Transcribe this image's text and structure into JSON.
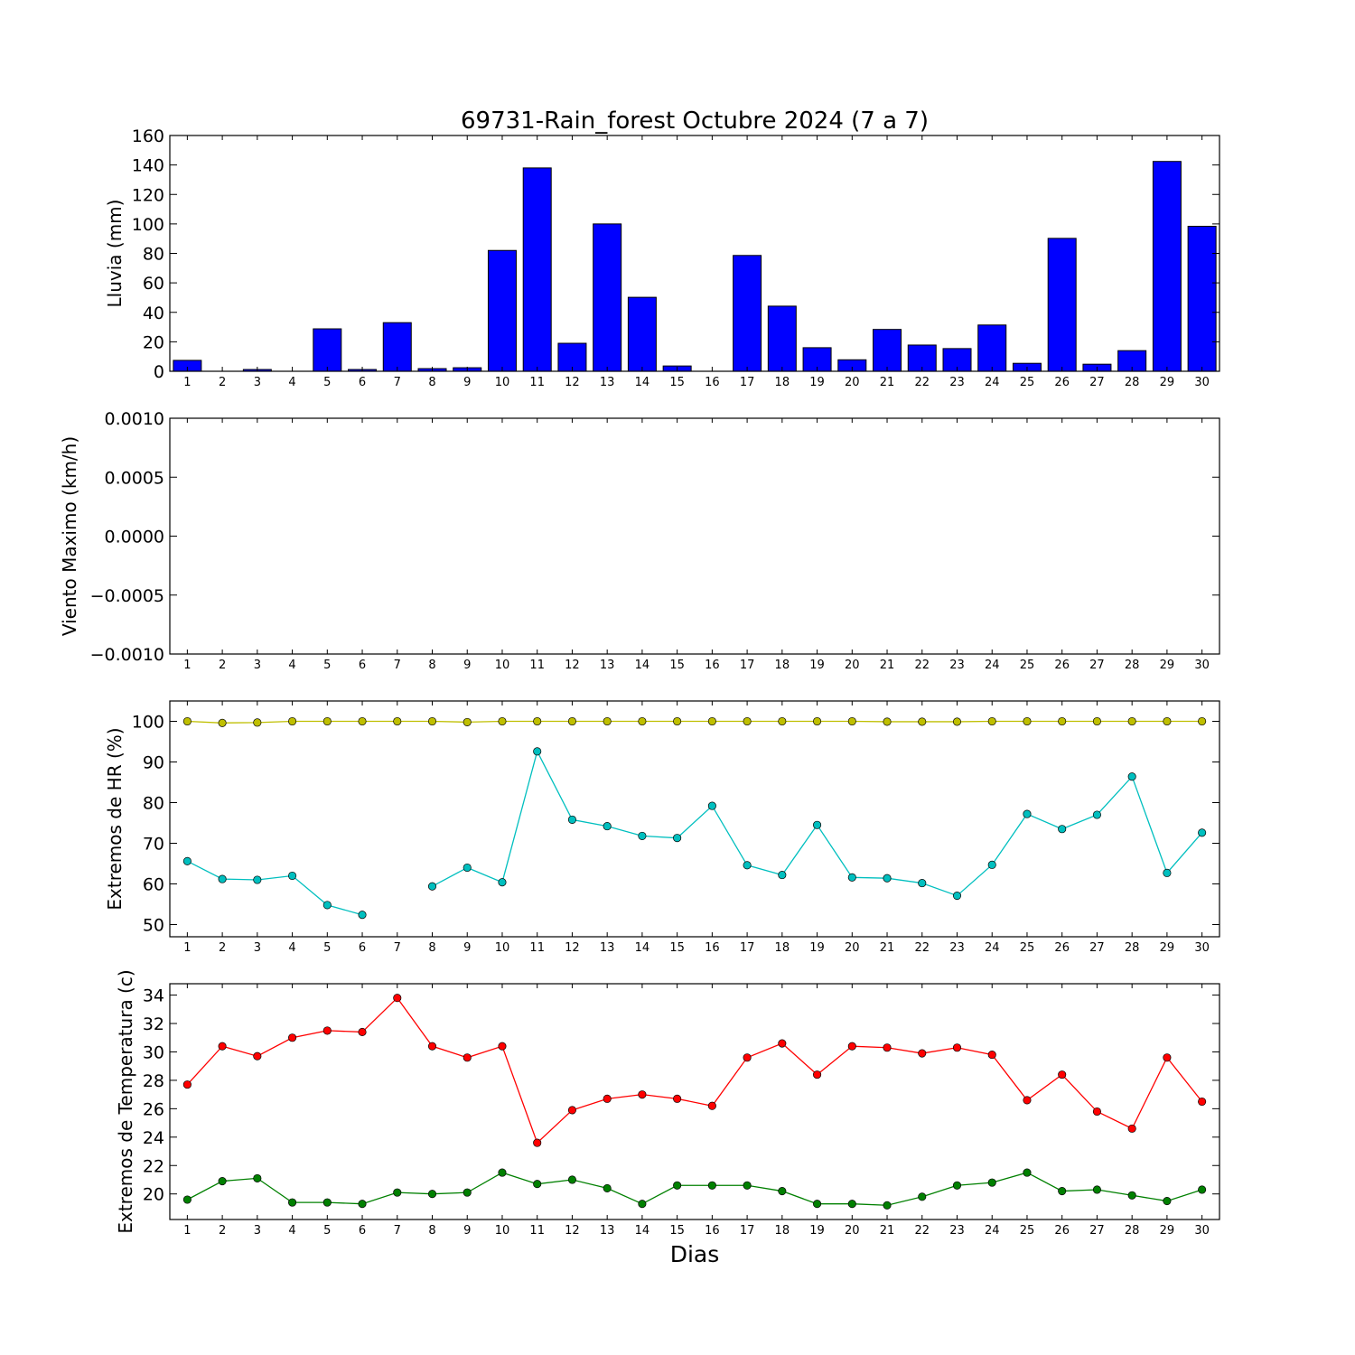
{
  "figure": {
    "title": "69731-Rain_forest Octubre 2024  (7 a 7)",
    "xlabel": "Dias"
  },
  "chart_data": [
    {
      "type": "bar",
      "id": "rain",
      "ylabel": "Lluvia (mm)",
      "ylim": [
        0,
        160
      ],
      "yticks": [
        0,
        20,
        40,
        60,
        80,
        100,
        120,
        140,
        160
      ],
      "ytick_labels": [
        "0",
        "20",
        "40",
        "60",
        "80",
        "100",
        "120",
        "140",
        "160"
      ],
      "categories": [
        "1",
        "2",
        "3",
        "4",
        "5",
        "6",
        "7",
        "8",
        "9",
        "10",
        "11",
        "12",
        "13",
        "14",
        "15",
        "16",
        "17",
        "18",
        "19",
        "20",
        "21",
        "22",
        "23",
        "24",
        "25",
        "26",
        "27",
        "28",
        "29",
        "30"
      ],
      "series": [
        {
          "color": "#0000ff",
          "values": [
            7.4,
            0,
            1.2,
            0,
            28.8,
            1.2,
            33,
            1.8,
            2.4,
            82,
            138,
            19,
            100,
            50.2,
            3.6,
            0,
            78.6,
            44.2,
            16,
            7.8,
            28.4,
            17.8,
            15.4,
            31.4,
            5.4,
            90.2,
            4.8,
            14,
            142.4,
            98.4
          ]
        }
      ]
    },
    {
      "type": "line",
      "id": "wind",
      "ylabel": "Viento Maximo (km/h)",
      "ylim": [
        -0.001,
        0.001
      ],
      "yticks": [
        -0.001,
        -0.0005,
        0,
        0.0005,
        0.001
      ],
      "ytick_labels": [
        "−0.0010",
        "−0.0005",
        "0.0000",
        "0.0005",
        "0.0010"
      ],
      "categories": [
        "1",
        "2",
        "3",
        "4",
        "5",
        "6",
        "7",
        "8",
        "9",
        "10",
        "11",
        "12",
        "13",
        "14",
        "15",
        "16",
        "17",
        "18",
        "19",
        "20",
        "21",
        "22",
        "23",
        "24",
        "25",
        "26",
        "27",
        "28",
        "29",
        "30"
      ],
      "series": []
    },
    {
      "type": "line",
      "id": "hr",
      "ylabel": "Extremos de HR (%)",
      "ylim": [
        47,
        105
      ],
      "yticks": [
        50,
        60,
        70,
        80,
        90,
        100
      ],
      "ytick_labels": [
        "50",
        "60",
        "70",
        "80",
        "90",
        "100"
      ],
      "categories": [
        "1",
        "2",
        "3",
        "4",
        "5",
        "6",
        "7",
        "8",
        "9",
        "10",
        "11",
        "12",
        "13",
        "14",
        "15",
        "16",
        "17",
        "18",
        "19",
        "20",
        "21",
        "22",
        "23",
        "24",
        "25",
        "26",
        "27",
        "28",
        "29",
        "30"
      ],
      "series": [
        {
          "color": "#bfbf00",
          "values": [
            100,
            99.6,
            99.7,
            100,
            100,
            100,
            100,
            100,
            99.8,
            100,
            100,
            100,
            100,
            100,
            100,
            100,
            100,
            100,
            100,
            100,
            99.9,
            99.9,
            99.9,
            100,
            100,
            100,
            100,
            100,
            100,
            100
          ]
        },
        {
          "color": "#00bfbf",
          "values": [
            65.6,
            61.2,
            61,
            62,
            54.8,
            52.4,
            null,
            59.4,
            64,
            60.4,
            92.6,
            75.8,
            74.2,
            71.8,
            71.3,
            79.2,
            64.6,
            62.2,
            74.5,
            61.6,
            61.4,
            60.2,
            57.1,
            64.7,
            77.2,
            73.5,
            77,
            86.4,
            62.7,
            72.6
          ]
        }
      ]
    },
    {
      "type": "line",
      "id": "temp",
      "ylabel": "Extremos de Temperatura (c)",
      "ylim": [
        18.2,
        34.8
      ],
      "yticks": [
        20,
        22,
        24,
        26,
        28,
        30,
        32,
        34
      ],
      "ytick_labels": [
        "20",
        "22",
        "24",
        "26",
        "28",
        "30",
        "32",
        "34"
      ],
      "categories": [
        "1",
        "2",
        "3",
        "4",
        "5",
        "6",
        "7",
        "8",
        "9",
        "10",
        "11",
        "12",
        "13",
        "14",
        "15",
        "16",
        "17",
        "18",
        "19",
        "20",
        "21",
        "22",
        "23",
        "24",
        "25",
        "26",
        "27",
        "28",
        "29",
        "30"
      ],
      "series": [
        {
          "color": "#ff0000",
          "values": [
            27.7,
            30.4,
            29.7,
            31,
            31.5,
            31.4,
            33.8,
            30.4,
            29.6,
            30.4,
            23.6,
            25.9,
            26.7,
            27,
            26.7,
            26.2,
            29.6,
            30.6,
            28.4,
            30.4,
            30.3,
            29.9,
            30.3,
            29.8,
            26.6,
            28.4,
            25.8,
            24.6,
            29.6,
            26.5
          ]
        },
        {
          "color": "#008000",
          "values": [
            19.6,
            20.9,
            21.1,
            19.4,
            19.4,
            19.3,
            20.1,
            20,
            20.1,
            21.5,
            20.7,
            21,
            20.4,
            19.3,
            20.6,
            20.6,
            20.6,
            20.2,
            19.3,
            19.3,
            19.2,
            19.8,
            20.6,
            20.8,
            21.5,
            20.2,
            20.3,
            19.9,
            19.5,
            20.3
          ]
        }
      ]
    }
  ]
}
